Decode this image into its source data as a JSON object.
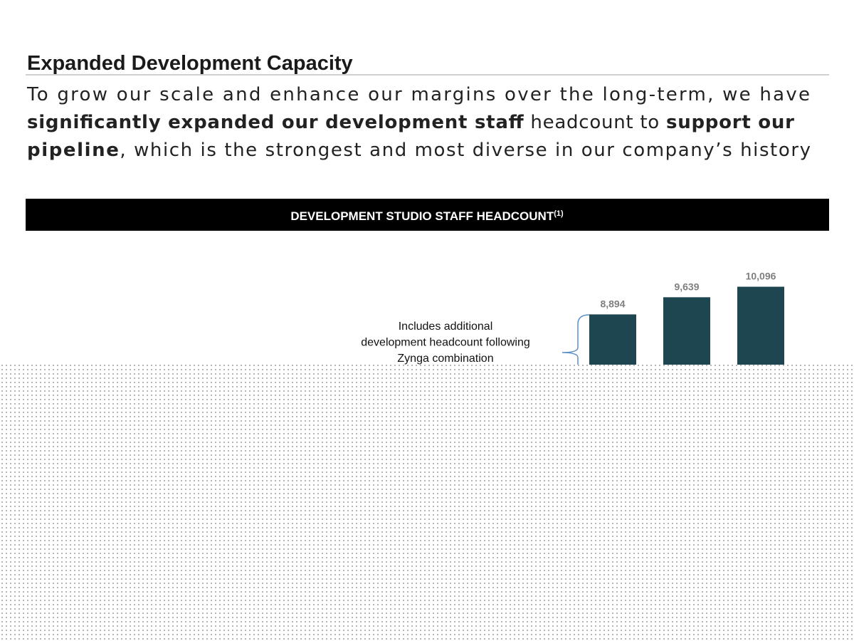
{
  "header": {
    "title": "Expanded Development Capacity"
  },
  "intro": {
    "lines": [
      [
        {
          "text": "To grow our scale and enhance our margins over the long-term, we have",
          "bold": false
        }
      ],
      [
        {
          "text": "significantly expanded our development staff",
          "bold": true
        },
        {
          "text": " headcount to ",
          "bold": false
        },
        {
          "text": "support our",
          "bold": true
        }
      ],
      [
        {
          "text": "pipeline",
          "bold": true
        },
        {
          "text": ", which is the strongest and most diverse in our company’s history",
          "bold": false
        }
      ]
    ]
  },
  "banner": {
    "title": "DEVELOPMENT STUDIO STAFF HEADCOUNT",
    "superscript": "(1)"
  },
  "chart_data": {
    "type": "bar",
    "categories": [
      null,
      null,
      null
    ],
    "values": [
      8894,
      9639,
      10096
    ],
    "value_labels": [
      "8,894",
      "9,639",
      "10,096"
    ],
    "color": "#1d4650",
    "ylim": [
      0,
      12000
    ],
    "annotation": [
      "Includes additional",
      "development headcount following",
      "Zynga combination"
    ]
  }
}
